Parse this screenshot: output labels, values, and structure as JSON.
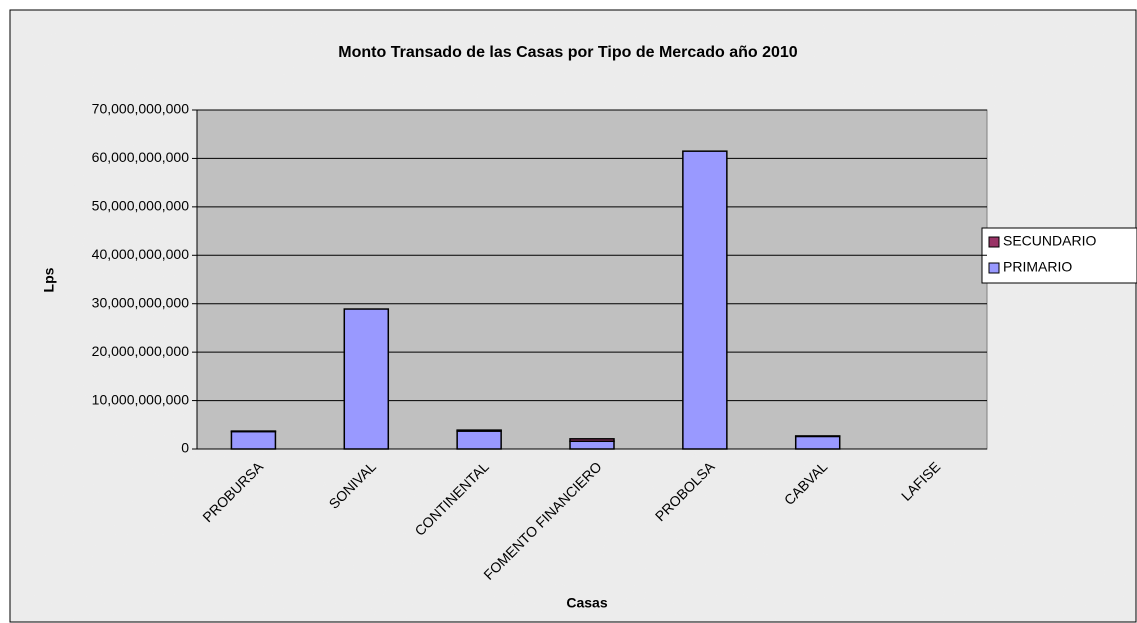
{
  "chart_data": {
    "type": "stacked_bar",
    "title": "Monto Transado de las Casas por Tipo de Mercado año 2010",
    "x_label": "Casas",
    "y_label": "Lps",
    "categories": [
      "PROBURSA",
      "SONIVAL",
      "CONTINENTAL",
      "FOMENTO FINANCIERO",
      "PROBOLSA",
      "CABVAL",
      "LAFISE"
    ],
    "series": [
      {
        "name": "PRIMARIO",
        "color": "#9999ff",
        "values": [
          3600000000,
          28900000000,
          3700000000,
          1600000000,
          61500000000,
          2600000000,
          0
        ]
      },
      {
        "name": "SECUNDARIO",
        "color": "#993366",
        "values": [
          100000000,
          0,
          200000000,
          500000000,
          0,
          100000000,
          0
        ]
      }
    ],
    "ylim": [
      0,
      70000000000
    ],
    "yticks": [
      0,
      {
        "value": 10000000000,
        "label": "10,000,000,000"
      },
      {
        "value": 20000000000,
        "label": "20,000,000,000"
      },
      {
        "value": 30000000000,
        "label": "30,000,000,000"
      },
      {
        "value": 40000000000,
        "label": "40,000,000,000"
      },
      {
        "value": 50000000000,
        "label": "50,000,000,000"
      },
      {
        "value": 60000000000,
        "label": "60,000,000,000"
      },
      {
        "value": 70000000000,
        "label": "70,000,000,000"
      }
    ],
    "grid": true,
    "legend": "right"
  }
}
